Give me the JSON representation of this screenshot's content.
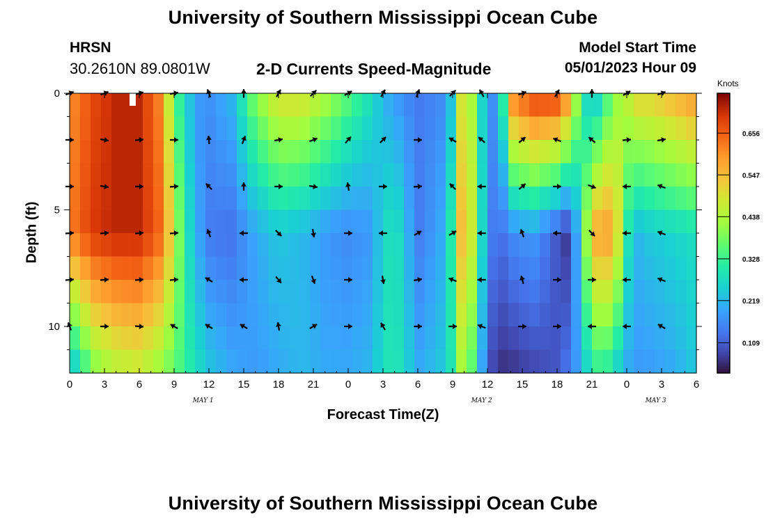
{
  "chart_data": {
    "type": "heatmap",
    "title": "University of Southern Mississippi Ocean Cube",
    "station": "HRSN",
    "coordinates": "30.2610N  89.0801W",
    "subtitle": "2-D Currents Speed-Magnitude",
    "model_start_label": "Model Start Time",
    "model_start": "05/01/2023 Hour 09",
    "xlabel": "Forecast Time(Z)",
    "ylabel": "Depth (ft)",
    "units": "Knots",
    "footer_title": "University of Southern Mississippi Ocean Cube",
    "x_ticks": [
      "0",
      "3",
      "6",
      "9",
      "12",
      "15",
      "18",
      "21",
      "0",
      "3",
      "6",
      "9",
      "12",
      "15",
      "18",
      "21",
      "0",
      "3",
      "6"
    ],
    "day_labels": [
      {
        "text": "MAY 1",
        "hour": 11.5
      },
      {
        "text": "MAY 2",
        "hour": 35.5
      },
      {
        "text": "MAY 3",
        "hour": 50.5
      }
    ],
    "y_ticks": [
      "0",
      "5",
      "10"
    ],
    "xlim": [
      0,
      54
    ],
    "ylim": [
      12,
      0
    ],
    "colorbar_ticks": [
      "0.656",
      "0.547",
      "0.438",
      "0.328",
      "0.219",
      "0.109"
    ],
    "colorbar_values": [
      0.656,
      0.547,
      0.438,
      0.328,
      0.219,
      0.109
    ],
    "colorbar_range": [
      0.03,
      0.76
    ],
    "speed_profile": {
      "hours": [
        0,
        2,
        4,
        6,
        8,
        9,
        10,
        11,
        12,
        14,
        16,
        18,
        20,
        22,
        24,
        26,
        27,
        28,
        29,
        30,
        32,
        33,
        34,
        35,
        36,
        37,
        38,
        40,
        42,
        43,
        44,
        45,
        46,
        47,
        48,
        49,
        50,
        52,
        54
      ],
      "surface": [
        0.6,
        0.68,
        0.72,
        0.72,
        0.6,
        0.36,
        0.26,
        0.18,
        0.17,
        0.22,
        0.4,
        0.5,
        0.5,
        0.44,
        0.36,
        0.28,
        0.22,
        0.18,
        0.16,
        0.14,
        0.16,
        0.24,
        0.56,
        0.36,
        0.18,
        0.16,
        0.62,
        0.7,
        0.7,
        0.6,
        0.34,
        0.2,
        0.3,
        0.4,
        0.46,
        0.52,
        0.52,
        0.56,
        0.6
      ],
      "mid": [
        0.62,
        0.7,
        0.72,
        0.72,
        0.64,
        0.46,
        0.3,
        0.2,
        0.14,
        0.13,
        0.2,
        0.24,
        0.22,
        0.18,
        0.16,
        0.18,
        0.26,
        0.3,
        0.22,
        0.14,
        0.2,
        0.32,
        0.62,
        0.4,
        0.16,
        0.12,
        0.16,
        0.18,
        0.1,
        0.06,
        0.26,
        0.56,
        0.6,
        0.56,
        0.3,
        0.22,
        0.24,
        0.26,
        0.28
      ],
      "bottom": [
        0.2,
        0.38,
        0.44,
        0.46,
        0.4,
        0.36,
        0.32,
        0.28,
        0.24,
        0.2,
        0.18,
        0.2,
        0.22,
        0.2,
        0.2,
        0.22,
        0.28,
        0.3,
        0.26,
        0.2,
        0.24,
        0.3,
        0.46,
        0.3,
        0.1,
        0.06,
        0.06,
        0.08,
        0.1,
        0.14,
        0.2,
        0.3,
        0.32,
        0.26,
        0.2,
        0.18,
        0.18,
        0.2,
        0.24
      ]
    },
    "vectors": {
      "depths": [
        0,
        2,
        4,
        6,
        8,
        10
      ],
      "hours": [
        0,
        3,
        6,
        9,
        12,
        15,
        18,
        21,
        24,
        27,
        30,
        33,
        35.5,
        39,
        42,
        45,
        48,
        51
      ],
      "angles_deg": [
        [
          20,
          20,
          15,
          10,
          110,
          90,
          60,
          45,
          30,
          60,
          70,
          45,
          120,
          20,
          60,
          90,
          30,
          20
        ],
        [
          0,
          -10,
          5,
          0,
          95,
          70,
          10,
          20,
          50,
          45,
          0,
          150,
          140,
          40,
          160,
          140,
          5,
          10
        ],
        [
          0,
          -10,
          0,
          5,
          135,
          90,
          0,
          -10,
          100,
          0,
          5,
          135,
          180,
          40,
          0,
          -20,
          180,
          160
        ],
        [
          5,
          5,
          5,
          5,
          110,
          180,
          -45,
          -80,
          0,
          180,
          30,
          30,
          180,
          110,
          180,
          -45,
          180,
          160
        ],
        [
          5,
          5,
          5,
          5,
          150,
          180,
          -50,
          -70,
          0,
          -80,
          10,
          160,
          180,
          105,
          0,
          0,
          180,
          160
        ],
        [
          110,
          0,
          -5,
          150,
          150,
          150,
          100,
          30,
          0,
          120,
          0,
          0,
          160,
          0,
          0,
          180,
          180,
          150
        ]
      ]
    }
  }
}
